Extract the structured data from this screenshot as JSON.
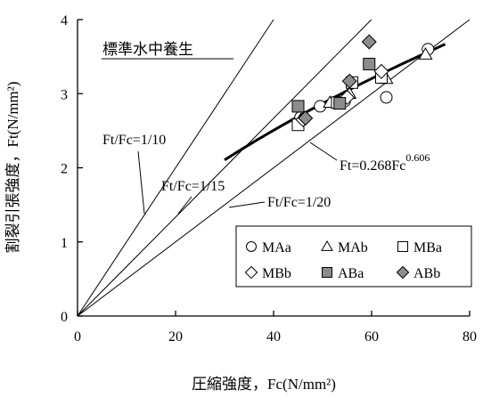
{
  "chart_data": {
    "type": "scatter",
    "title": "",
    "xlabel": "圧縮強度，Fc(N/mm²)",
    "ylabel": "割裂引張強度，Ft(N/mm²)",
    "xlim": [
      0,
      80
    ],
    "ylim": [
      0,
      4
    ],
    "x_ticks": [
      "0",
      "20",
      "40",
      "60",
      "80"
    ],
    "y_ticks": [
      "0",
      "1",
      "2",
      "3",
      "4"
    ],
    "grid": false,
    "legend_position": "bottom-right",
    "condition_label": "標準水中養生",
    "series": [
      {
        "name": "MAa",
        "marker": "circle-open",
        "points": [
          [
            45.5,
            2.68
          ],
          [
            49.5,
            2.83
          ],
          [
            54.5,
            2.9
          ],
          [
            63.0,
            2.95
          ],
          [
            71.5,
            3.6
          ]
        ]
      },
      {
        "name": "MAb",
        "marker": "triangle-open",
        "points": [
          [
            46.0,
            2.7
          ],
          [
            51.5,
            2.88
          ],
          [
            55.5,
            3.0
          ],
          [
            63.0,
            3.2
          ],
          [
            71.0,
            3.53
          ]
        ]
      },
      {
        "name": "MBa",
        "marker": "square-open",
        "points": [
          [
            45.0,
            2.58
          ],
          [
            53.0,
            2.88
          ],
          [
            56.0,
            3.15
          ],
          [
            62.0,
            3.22
          ]
        ]
      },
      {
        "name": "MBb",
        "marker": "diamond-open",
        "points": [
          [
            46.0,
            2.65
          ],
          [
            55.0,
            2.95
          ],
          [
            62.0,
            3.3
          ]
        ]
      },
      {
        "name": "ABa",
        "marker": "square-filled",
        "points": [
          [
            45.0,
            2.83
          ],
          [
            53.5,
            2.87
          ],
          [
            59.5,
            3.4
          ]
        ]
      },
      {
        "name": "ABb",
        "marker": "diamond-filled",
        "points": [
          [
            46.5,
            2.67
          ],
          [
            55.5,
            3.17
          ],
          [
            59.5,
            3.7
          ]
        ]
      }
    ],
    "reference_lines": [
      {
        "label": "Ft/Fc=1/10",
        "ratio": 0.1
      },
      {
        "label": "Ft/Fc=1/15",
        "ratio": 0.0667
      },
      {
        "label": "Ft/Fc=1/20",
        "ratio": 0.05
      }
    ],
    "fit_curve": {
      "label_base": "Ft=0.268Fc",
      "label_exponent": "0.606",
      "coefficient": 0.268,
      "exponent": 0.606,
      "x_range": [
        30,
        75
      ]
    }
  }
}
